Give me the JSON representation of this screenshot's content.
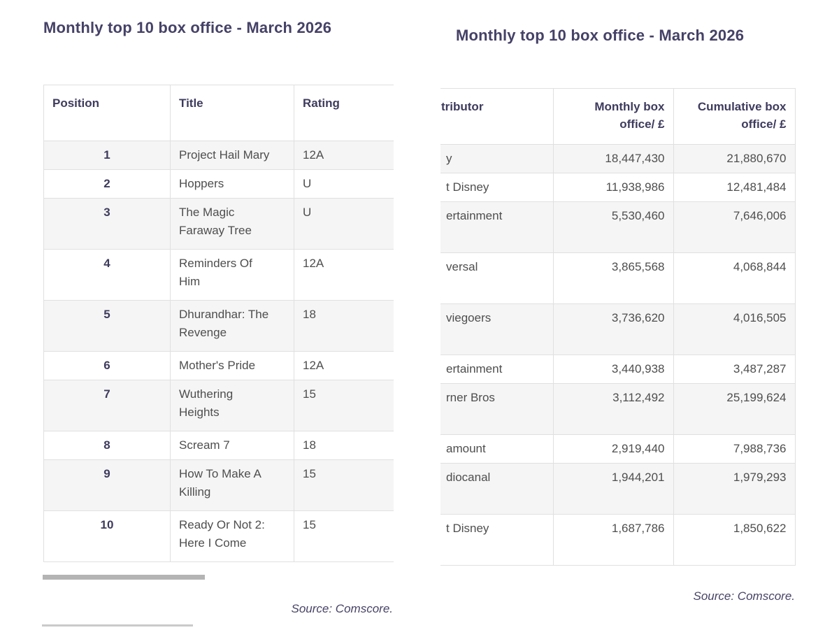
{
  "colors": {
    "title": "#454167",
    "header_text": "#3e3b5e",
    "body_text": "#4e4e4e",
    "border": "#e0e0e0",
    "row_stripe": "#f5f5f5",
    "scrollbar_thumb": "#b4b4b4",
    "divider": "#cacaca",
    "source_text": "#474366"
  },
  "left_table": {
    "title": "Monthly top 10 box office - March 2026",
    "columns": [
      "Position",
      "Title",
      "Rating"
    ],
    "rows": [
      {
        "position": "1",
        "title": "Project Hail Mary",
        "rating": "12A"
      },
      {
        "position": "2",
        "title": "Hoppers",
        "rating": "U"
      },
      {
        "position": "3",
        "title": "The Magic\nFaraway Tree",
        "rating": "U"
      },
      {
        "position": "4",
        "title": "Reminders Of\nHim",
        "rating": "12A"
      },
      {
        "position": "5",
        "title": "Dhurandhar: The\nRevenge",
        "rating": "18"
      },
      {
        "position": "6",
        "title": "Mother's Pride",
        "rating": "12A"
      },
      {
        "position": "7",
        "title": "Wuthering\nHeights",
        "rating": "15"
      },
      {
        "position": "8",
        "title": "Scream 7",
        "rating": "18"
      },
      {
        "position": "9",
        "title": "How To Make A\nKilling",
        "rating": "15"
      },
      {
        "position": "10",
        "title": "Ready Or Not 2:\nHere I Come",
        "rating": "15"
      }
    ],
    "source": "Source: Comscore."
  },
  "right_table": {
    "title": "Monthly top 10 box office - March 2026",
    "columns": [
      "tributor",
      "Monthly box office/ £",
      "Cumulative box office/ £"
    ],
    "rows": [
      {
        "distributor": "y",
        "monthly": "18,447,430",
        "cumulative": "21,880,670"
      },
      {
        "distributor": "t Disney",
        "monthly": "11,938,986",
        "cumulative": "12,481,484"
      },
      {
        "distributor": "ertainment",
        "monthly": "5,530,460",
        "cumulative": "7,646,006"
      },
      {
        "distributor": "versal",
        "monthly": "3,865,568",
        "cumulative": "4,068,844"
      },
      {
        "distributor": "viegoers",
        "monthly": "3,736,620",
        "cumulative": "4,016,505"
      },
      {
        "distributor": "ertainment",
        "monthly": "3,440,938",
        "cumulative": "3,487,287"
      },
      {
        "distributor": "rner Bros",
        "monthly": "3,112,492",
        "cumulative": "25,199,624"
      },
      {
        "distributor": "amount",
        "monthly": "2,919,440",
        "cumulative": "7,988,736"
      },
      {
        "distributor": "diocanal",
        "monthly": "1,944,201",
        "cumulative": "1,979,293"
      },
      {
        "distributor": "t Disney",
        "monthly": "1,687,786",
        "cumulative": "1,850,622"
      }
    ],
    "source": "Source: Comscore."
  }
}
